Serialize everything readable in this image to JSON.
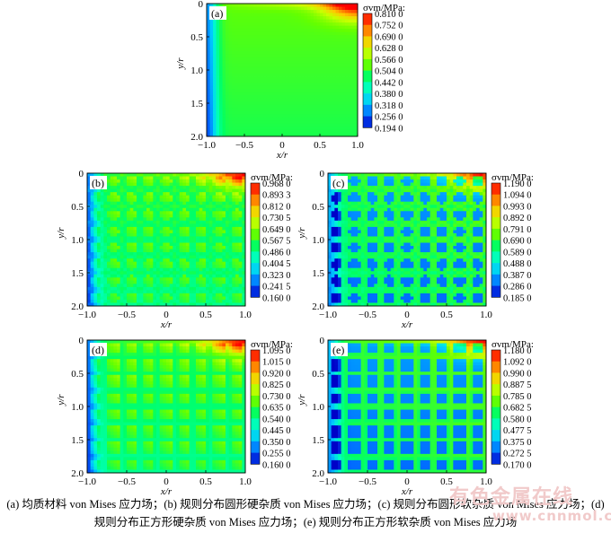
{
  "chart_data": [
    {
      "type": "heatmap",
      "panel_label": "(a)",
      "colorbar_title": "σvm/MPa:",
      "colorbar_ticks": [
        "0.810 0",
        "0.752 0",
        "0.690 0",
        "0.628 0",
        "0.566 0",
        "0.504 0",
        "0.442 0",
        "0.380 0",
        "0.318 0",
        "0.256 0",
        "0.194 0"
      ],
      "value_range": [
        0.194,
        0.81
      ],
      "xlabel": "x/r",
      "ylabel": "y/r",
      "xticks": [
        "−1.0",
        "−0.5",
        "0",
        "0.5",
        "1.0"
      ],
      "yticks": [
        "0",
        "0.5",
        "1.0",
        "1.5",
        "2.0"
      ],
      "xlim": [
        -1.0,
        1.0
      ],
      "ylim": [
        0,
        2.0
      ],
      "y_axis_inverted": true,
      "inclusions": "none"
    },
    {
      "type": "heatmap",
      "panel_label": "(b)",
      "colorbar_title": "σvm/MPa:",
      "colorbar_ticks": [
        "0.968 0",
        "0.893 3",
        "0.812 0",
        "0.730 5",
        "0.649 0",
        "0.567 5",
        "0.486 0",
        "0.404 5",
        "0.323 0",
        "0.241 5",
        "0.160 0"
      ],
      "value_range": [
        0.16,
        0.968
      ],
      "xlabel": "x/r",
      "ylabel": "y/r",
      "xticks": [
        "−1.0",
        "−0.5",
        "0",
        "0.5",
        "1.0"
      ],
      "yticks": [
        "0",
        "0.5",
        "1.0",
        "1.5",
        "2.0"
      ],
      "xlim": [
        -1.0,
        1.0
      ],
      "ylim": [
        0,
        2.0
      ],
      "y_axis_inverted": true,
      "inclusions": "circle-hard"
    },
    {
      "type": "heatmap",
      "panel_label": "(c)",
      "colorbar_title": "σvm/MPa:",
      "colorbar_ticks": [
        "1.190 0",
        "1.094 0",
        "0.993 0",
        "0.892 0",
        "0.791 0",
        "0.690 0",
        "0.589 0",
        "0.488 0",
        "0.387 0",
        "0.286 0",
        "0.185 0"
      ],
      "value_range": [
        0.185,
        1.19
      ],
      "xlabel": "x/r",
      "ylabel": "y/r",
      "xticks": [
        "−1.0",
        "−0.5",
        "0",
        "0.5",
        "1.0"
      ],
      "yticks": [
        "0",
        "0.5",
        "1.0",
        "1.5",
        "2.0"
      ],
      "xlim": [
        -1.0,
        1.0
      ],
      "ylim": [
        0,
        2.0
      ],
      "y_axis_inverted": true,
      "inclusions": "circle-soft"
    },
    {
      "type": "heatmap",
      "panel_label": "(d)",
      "colorbar_title": "σvm/MPa:",
      "colorbar_ticks": [
        "1.095 0",
        "1.015 0",
        "0.920 0",
        "0.825 0",
        "0.730 0",
        "0.635 0",
        "0.540 0",
        "0.445 0",
        "0.350 0",
        "0.255 0",
        "0.160 0"
      ],
      "value_range": [
        0.16,
        1.095
      ],
      "xlabel": "x/r",
      "ylabel": "y/r",
      "xticks": [
        "−1.0",
        "−0.5",
        "0",
        "0.5",
        "1.0"
      ],
      "yticks": [
        "0",
        "0.5",
        "1.0",
        "1.5",
        "2.0"
      ],
      "xlim": [
        -1.0,
        1.0
      ],
      "ylim": [
        0,
        2.0
      ],
      "y_axis_inverted": true,
      "inclusions": "square-hard"
    },
    {
      "type": "heatmap",
      "panel_label": "(e)",
      "colorbar_title": "σvm/MPa:",
      "colorbar_ticks": [
        "1.180 0",
        "1.092 0",
        "0.990 0",
        "0.887 5",
        "0.785 0",
        "0.682 5",
        "0.580 0",
        "0.477 5",
        "0.375 0",
        "0.272 5",
        "0.170 0"
      ],
      "value_range": [
        0.17,
        1.18
      ],
      "xlabel": "x/r",
      "ylabel": "y/r",
      "xticks": [
        "−1.0",
        "−0.5",
        "0",
        "0.5",
        "1.0"
      ],
      "yticks": [
        "0",
        "0.5",
        "1.0",
        "1.5",
        "2.0"
      ],
      "xlim": [
        -1.0,
        1.0
      ],
      "ylim": [
        0,
        2.0
      ],
      "y_axis_inverted": true,
      "inclusions": "square-soft"
    }
  ],
  "caption": {
    "line1": "(a)  均质材料 von Mises  应力场；(b)  规则分布圆形硬杂质 von Mises 应力场；(c)  规则分布圆形软杂质 von Mises 应力场；(d)",
    "line2": "规则分布正方形硬杂质 von Mises 应力场；(e)  规则分布正方形软杂质 von Mises 应力场"
  },
  "watermark": {
    "line1": "有色金属在线",
    "line2": "www.cnnmol.com"
  },
  "colormap": [
    "#0000c8",
    "#0064ff",
    "#00c8ff",
    "#00ffc8",
    "#00ff64",
    "#64ff00",
    "#c8ff00",
    "#ffc800",
    "#ff6400",
    "#ff0000"
  ]
}
